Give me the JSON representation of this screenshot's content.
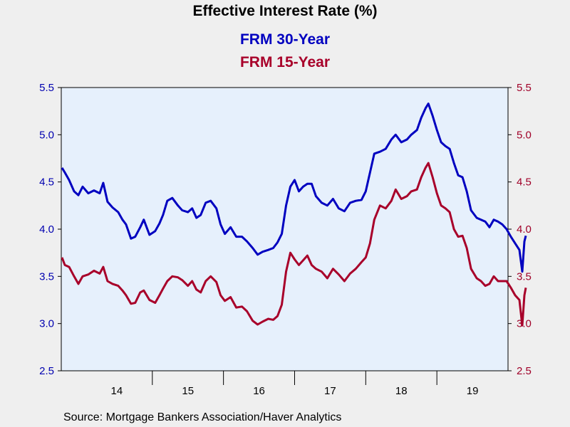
{
  "chart_data": {
    "type": "line",
    "title": "Effective Interest Rate (%)",
    "xlabel": "",
    "ylabel": "",
    "x_range": [
      2013.72,
      2020.0
    ],
    "ylim": [
      2.5,
      5.5
    ],
    "y_ticks": [
      "2.5",
      "3.0",
      "3.5",
      "4.0",
      "4.5",
      "5.0",
      "5.5"
    ],
    "y_ticks_right": [
      "2.5",
      "3.0",
      "3.5",
      "4.0",
      "4.5",
      "5.0",
      "5.5"
    ],
    "x_ticks": [
      {
        "label": "14",
        "center": 2014.5
      },
      {
        "label": "15",
        "center": 2015.5
      },
      {
        "label": "16",
        "center": 2016.5
      },
      {
        "label": "17",
        "center": 2017.5
      },
      {
        "label": "18",
        "center": 2018.5
      },
      {
        "label": "19",
        "center": 2019.5
      }
    ],
    "year_boundaries": [
      2015,
      2016,
      2017,
      2018,
      2019
    ],
    "grid": false,
    "legend_placement": "top-center",
    "source": "Source:  Mortgage Bankers Association/Haver Analytics",
    "colors": {
      "frm30": "#0000c0",
      "frm15": "#a8002a",
      "plot_bg": "#e6f0fc"
    },
    "series": [
      {
        "name": "FRM 30-Year",
        "points": [
          [
            2013.73,
            4.65
          ],
          [
            2013.77,
            4.6
          ],
          [
            2013.83,
            4.52
          ],
          [
            2013.9,
            4.4
          ],
          [
            2013.96,
            4.36
          ],
          [
            2014.02,
            4.45
          ],
          [
            2014.1,
            4.38
          ],
          [
            2014.18,
            4.41
          ],
          [
            2014.26,
            4.38
          ],
          [
            2014.31,
            4.49
          ],
          [
            2014.37,
            4.29
          ],
          [
            2014.44,
            4.23
          ],
          [
            2014.52,
            4.18
          ],
          [
            2014.58,
            4.1
          ],
          [
            2014.63,
            4.05
          ],
          [
            2014.7,
            3.9
          ],
          [
            2014.76,
            3.92
          ],
          [
            2014.83,
            4.02
          ],
          [
            2014.88,
            4.1
          ],
          [
            2014.96,
            3.94
          ],
          [
            2015.04,
            3.98
          ],
          [
            2015.1,
            4.06
          ],
          [
            2015.15,
            4.15
          ],
          [
            2015.21,
            4.3
          ],
          [
            2015.28,
            4.33
          ],
          [
            2015.36,
            4.25
          ],
          [
            2015.42,
            4.2
          ],
          [
            2015.5,
            4.18
          ],
          [
            2015.56,
            4.22
          ],
          [
            2015.62,
            4.12
          ],
          [
            2015.68,
            4.15
          ],
          [
            2015.75,
            4.28
          ],
          [
            2015.82,
            4.3
          ],
          [
            2015.9,
            4.22
          ],
          [
            2015.96,
            4.05
          ],
          [
            2016.02,
            3.95
          ],
          [
            2016.1,
            4.02
          ],
          [
            2016.18,
            3.92
          ],
          [
            2016.26,
            3.92
          ],
          [
            2016.33,
            3.87
          ],
          [
            2016.41,
            3.8
          ],
          [
            2016.48,
            3.73
          ],
          [
            2016.55,
            3.76
          ],
          [
            2016.63,
            3.78
          ],
          [
            2016.7,
            3.8
          ],
          [
            2016.76,
            3.86
          ],
          [
            2016.82,
            3.95
          ],
          [
            2016.88,
            4.25
          ],
          [
            2016.94,
            4.45
          ],
          [
            2017.0,
            4.52
          ],
          [
            2017.06,
            4.4
          ],
          [
            2017.12,
            4.45
          ],
          [
            2017.18,
            4.48
          ],
          [
            2017.24,
            4.48
          ],
          [
            2017.3,
            4.35
          ],
          [
            2017.38,
            4.28
          ],
          [
            2017.46,
            4.25
          ],
          [
            2017.54,
            4.32
          ],
          [
            2017.62,
            4.22
          ],
          [
            2017.7,
            4.19
          ],
          [
            2017.78,
            4.28
          ],
          [
            2017.86,
            4.3
          ],
          [
            2017.94,
            4.31
          ],
          [
            2018.0,
            4.4
          ],
          [
            2018.06,
            4.6
          ],
          [
            2018.12,
            4.8
          ],
          [
            2018.2,
            4.82
          ],
          [
            2018.28,
            4.85
          ],
          [
            2018.36,
            4.95
          ],
          [
            2018.42,
            5.0
          ],
          [
            2018.5,
            4.92
          ],
          [
            2018.58,
            4.95
          ],
          [
            2018.64,
            5.0
          ],
          [
            2018.72,
            5.05
          ],
          [
            2018.78,
            5.18
          ],
          [
            2018.84,
            5.28
          ],
          [
            2018.88,
            5.33
          ],
          [
            2018.94,
            5.2
          ],
          [
            2019.0,
            5.05
          ],
          [
            2019.06,
            4.92
          ],
          [
            2019.12,
            4.88
          ],
          [
            2019.18,
            4.85
          ],
          [
            2019.24,
            4.7
          ],
          [
            2019.3,
            4.57
          ],
          [
            2019.36,
            4.55
          ],
          [
            2019.42,
            4.4
          ],
          [
            2019.48,
            4.2
          ],
          [
            2019.56,
            4.12
          ],
          [
            2019.62,
            4.1
          ],
          [
            2019.68,
            4.08
          ],
          [
            2019.74,
            4.02
          ],
          [
            2019.8,
            4.1
          ],
          [
            2019.86,
            4.08
          ],
          [
            2019.92,
            4.05
          ],
          [
            2019.98,
            4.0
          ],
          [
            2020.04,
            3.92
          ],
          [
            2020.1,
            3.85
          ],
          [
            2020.16,
            3.78
          ],
          [
            2020.2,
            3.55
          ],
          [
            2020.23,
            3.87
          ],
          [
            2020.25,
            3.93
          ]
        ]
      },
      {
        "name": "FRM 15-Year",
        "points": [
          [
            2013.73,
            3.7
          ],
          [
            2013.77,
            3.62
          ],
          [
            2013.83,
            3.6
          ],
          [
            2013.9,
            3.5
          ],
          [
            2013.96,
            3.42
          ],
          [
            2014.02,
            3.5
          ],
          [
            2014.1,
            3.52
          ],
          [
            2014.18,
            3.56
          ],
          [
            2014.26,
            3.53
          ],
          [
            2014.31,
            3.6
          ],
          [
            2014.37,
            3.45
          ],
          [
            2014.44,
            3.42
          ],
          [
            2014.52,
            3.4
          ],
          [
            2014.58,
            3.35
          ],
          [
            2014.63,
            3.3
          ],
          [
            2014.7,
            3.21
          ],
          [
            2014.76,
            3.22
          ],
          [
            2014.83,
            3.33
          ],
          [
            2014.88,
            3.35
          ],
          [
            2014.96,
            3.25
          ],
          [
            2015.04,
            3.22
          ],
          [
            2015.1,
            3.3
          ],
          [
            2015.15,
            3.37
          ],
          [
            2015.21,
            3.45
          ],
          [
            2015.28,
            3.5
          ],
          [
            2015.36,
            3.49
          ],
          [
            2015.42,
            3.46
          ],
          [
            2015.5,
            3.4
          ],
          [
            2015.56,
            3.45
          ],
          [
            2015.62,
            3.36
          ],
          [
            2015.68,
            3.33
          ],
          [
            2015.75,
            3.45
          ],
          [
            2015.82,
            3.5
          ],
          [
            2015.9,
            3.44
          ],
          [
            2015.96,
            3.3
          ],
          [
            2016.02,
            3.24
          ],
          [
            2016.1,
            3.28
          ],
          [
            2016.18,
            3.17
          ],
          [
            2016.26,
            3.18
          ],
          [
            2016.33,
            3.13
          ],
          [
            2016.41,
            3.03
          ],
          [
            2016.48,
            2.99
          ],
          [
            2016.55,
            3.02
          ],
          [
            2016.63,
            3.05
          ],
          [
            2016.7,
            3.04
          ],
          [
            2016.76,
            3.08
          ],
          [
            2016.82,
            3.2
          ],
          [
            2016.88,
            3.55
          ],
          [
            2016.94,
            3.75
          ],
          [
            2017.0,
            3.68
          ],
          [
            2017.06,
            3.62
          ],
          [
            2017.12,
            3.67
          ],
          [
            2017.18,
            3.72
          ],
          [
            2017.24,
            3.62
          ],
          [
            2017.3,
            3.58
          ],
          [
            2017.38,
            3.55
          ],
          [
            2017.46,
            3.48
          ],
          [
            2017.54,
            3.58
          ],
          [
            2017.62,
            3.52
          ],
          [
            2017.7,
            3.45
          ],
          [
            2017.78,
            3.53
          ],
          [
            2017.86,
            3.58
          ],
          [
            2017.94,
            3.65
          ],
          [
            2018.0,
            3.7
          ],
          [
            2018.06,
            3.85
          ],
          [
            2018.12,
            4.1
          ],
          [
            2018.2,
            4.25
          ],
          [
            2018.28,
            4.22
          ],
          [
            2018.36,
            4.3
          ],
          [
            2018.42,
            4.42
          ],
          [
            2018.5,
            4.32
          ],
          [
            2018.58,
            4.35
          ],
          [
            2018.64,
            4.4
          ],
          [
            2018.72,
            4.42
          ],
          [
            2018.78,
            4.55
          ],
          [
            2018.84,
            4.65
          ],
          [
            2018.88,
            4.7
          ],
          [
            2018.94,
            4.55
          ],
          [
            2019.0,
            4.38
          ],
          [
            2019.06,
            4.25
          ],
          [
            2019.12,
            4.22
          ],
          [
            2019.18,
            4.18
          ],
          [
            2019.24,
            4.0
          ],
          [
            2019.3,
            3.92
          ],
          [
            2019.36,
            3.93
          ],
          [
            2019.42,
            3.8
          ],
          [
            2019.48,
            3.58
          ],
          [
            2019.56,
            3.48
          ],
          [
            2019.62,
            3.45
          ],
          [
            2019.68,
            3.4
          ],
          [
            2019.74,
            3.42
          ],
          [
            2019.8,
            3.5
          ],
          [
            2019.86,
            3.45
          ],
          [
            2019.92,
            3.45
          ],
          [
            2019.98,
            3.45
          ],
          [
            2020.04,
            3.38
          ],
          [
            2020.1,
            3.3
          ],
          [
            2020.16,
            3.25
          ],
          [
            2020.2,
            2.98
          ],
          [
            2020.23,
            3.3
          ],
          [
            2020.25,
            3.38
          ]
        ]
      }
    ]
  }
}
